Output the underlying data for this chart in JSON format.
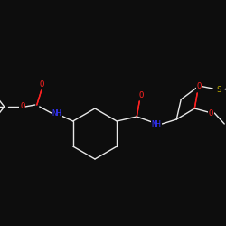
{
  "background_color": "#0d0d0d",
  "bond_color": "#e8e8e8",
  "atom_colors": {
    "O": "#ff2222",
    "N": "#3333ff",
    "S": "#bbaa00",
    "C": "#e8e8e8"
  },
  "figsize": [
    2.5,
    2.5
  ],
  "dpi": 100
}
